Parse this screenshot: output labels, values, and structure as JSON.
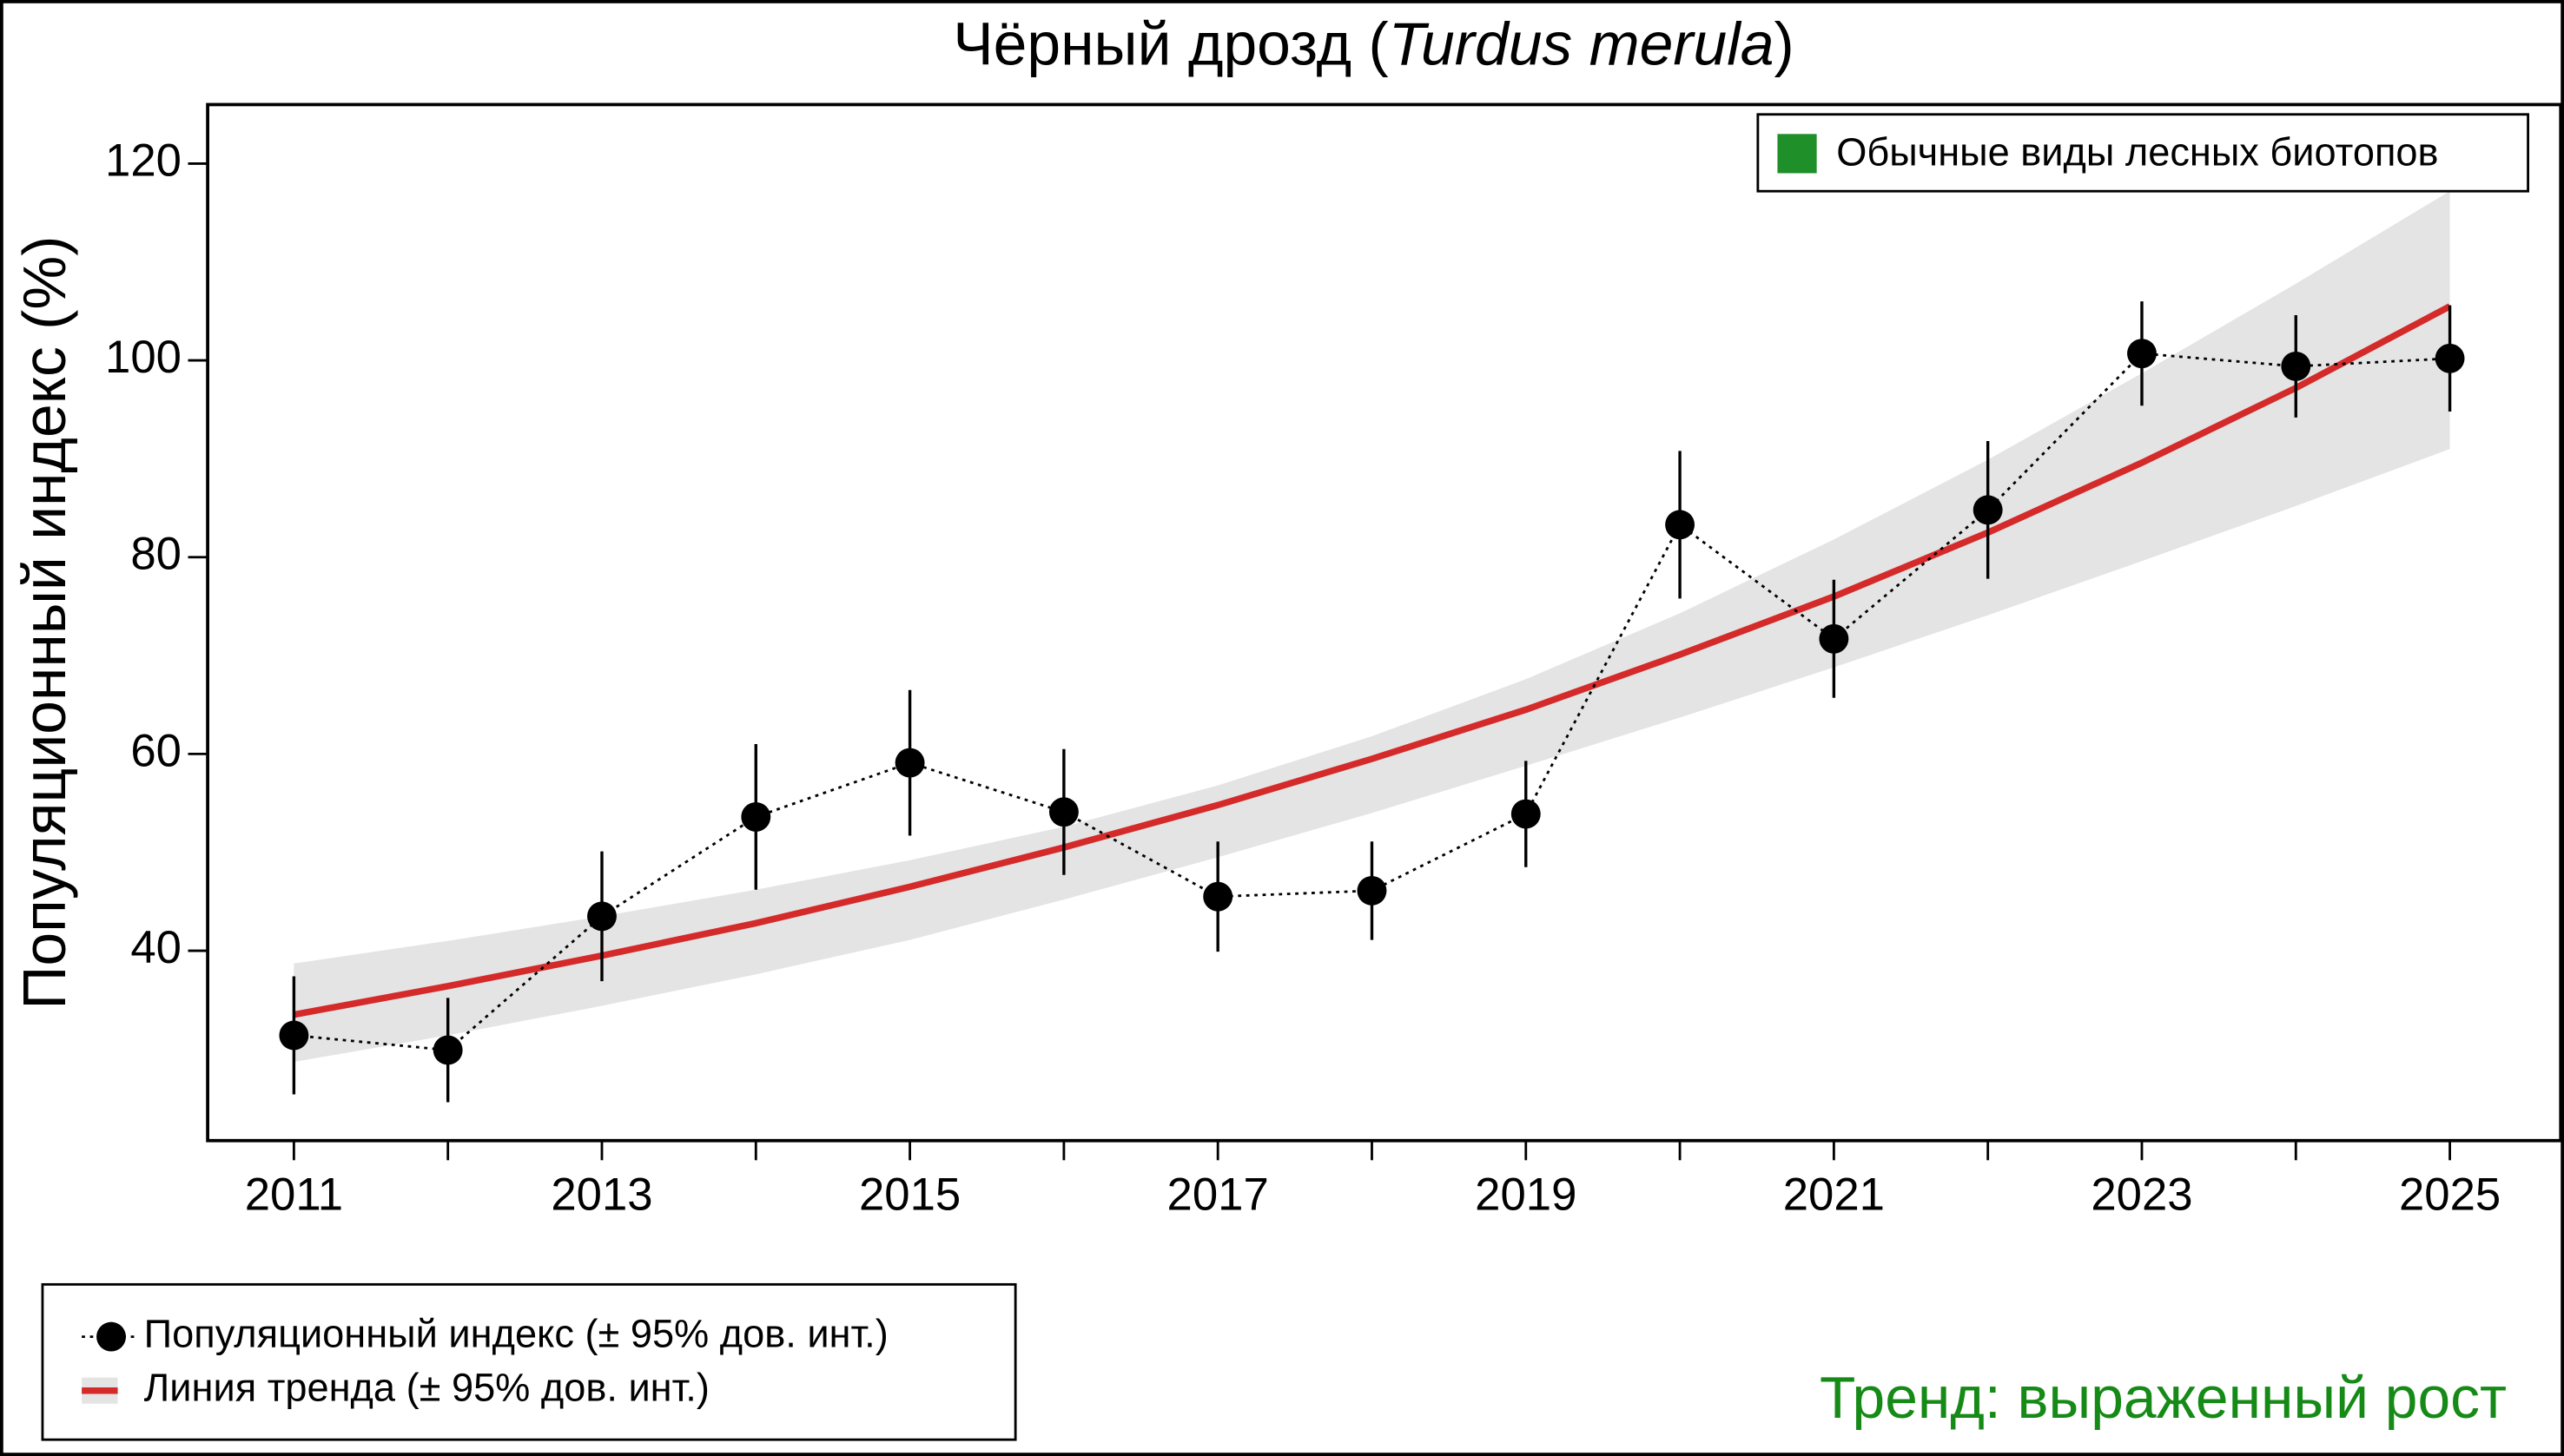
{
  "chart_data": {
    "type": "line",
    "title": "Чёрный дрозд (Turdus merula)",
    "ylabel": "Популяционный индекс (%)",
    "group_label": "Обычные виды лесных биотопов",
    "group_color": "#1f8f2a",
    "annotation": "Тренд: выраженный рост",
    "annotation_color": "#168a16",
    "x": [
      2011,
      2012,
      2013,
      2014,
      2015,
      2016,
      2017,
      2018,
      2019,
      2020,
      2021,
      2022,
      2023,
      2024,
      2025
    ],
    "xlim": [
      2010.44,
      2025.72
    ],
    "xticks": [
      2011,
      2013,
      2015,
      2017,
      2019,
      2021,
      2023,
      2025
    ],
    "ylim": [
      20.7,
      126
    ],
    "yticks": [
      40,
      60,
      80,
      100,
      120
    ],
    "series": [
      {
        "name": "Популяционный индекс (± 95% дов. инт.)",
        "color": "#000000",
        "values": [
          31.4,
          29.9,
          43.5,
          53.6,
          59.1,
          54.1,
          45.5,
          46.1,
          53.9,
          83.3,
          71.7,
          84.8,
          100.7,
          99.4,
          100.2
        ],
        "errors": [
          6.0,
          5.3,
          6.6,
          7.4,
          7.4,
          6.4,
          5.6,
          5.0,
          5.4,
          7.5,
          6.0,
          7.0,
          5.3,
          5.2,
          5.4
        ]
      },
      {
        "name": "Линия тренда (± 95% дов. инт.)",
        "color": "#d42a2a",
        "band_color": "#e4e4e4",
        "values": [
          33.5,
          36.4,
          39.5,
          42.8,
          46.5,
          50.5,
          54.8,
          59.5,
          64.5,
          70.1,
          76.0,
          82.5,
          89.6,
          97.2,
          105.5
        ],
        "upper": [
          38.7,
          41.0,
          43.5,
          46.2,
          49.2,
          52.6,
          56.8,
          61.8,
          67.6,
          74.3,
          81.8,
          89.9,
          98.7,
          107.8,
          117.2
        ],
        "lower": [
          28.7,
          31.4,
          34.4,
          37.6,
          41.1,
          45.2,
          49.5,
          54.0,
          58.8,
          63.7,
          68.8,
          74.1,
          79.6,
          85.2,
          91.0
        ]
      }
    ]
  }
}
